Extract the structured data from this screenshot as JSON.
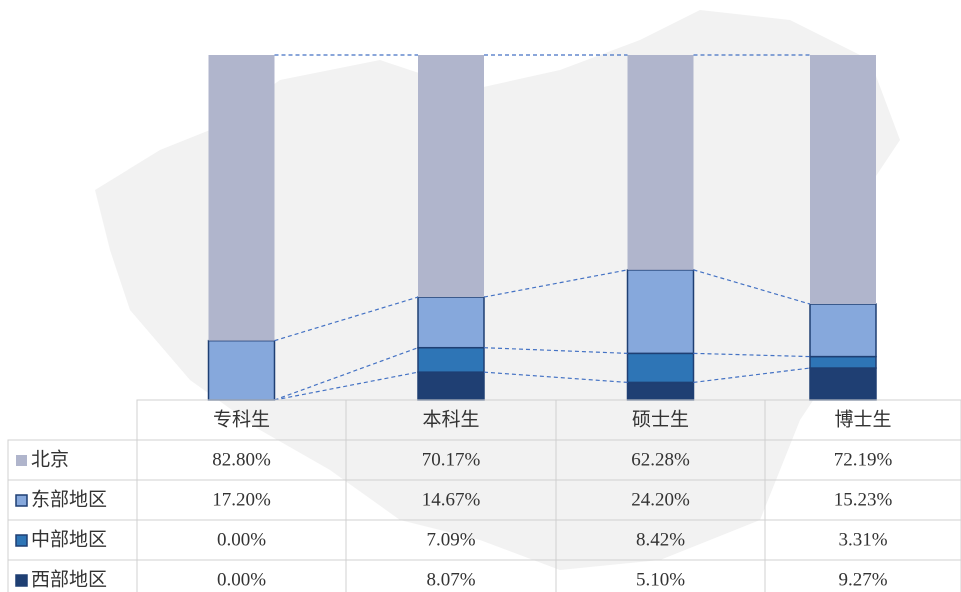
{
  "chart_data": {
    "type": "stacked_bar",
    "categories": [
      "专科生",
      "本科生",
      "硕士生",
      "博士生"
    ],
    "series": [
      {
        "name": "北京",
        "color": "#b0b5cc",
        "values": [
          82.8,
          70.17,
          62.28,
          72.19
        ],
        "value_labels": [
          "82.80%",
          "70.17%",
          "62.28%",
          "72.19%"
        ]
      },
      {
        "name": "东部地区",
        "color": "#86a8dc",
        "values": [
          17.2,
          14.67,
          24.2,
          15.23
        ],
        "value_labels": [
          "17.20%",
          "14.67%",
          "24.20%",
          "15.23%"
        ]
      },
      {
        "name": "中部地区",
        "color": "#2e75b6",
        "values": [
          0,
          7.09,
          8.42,
          3.31
        ],
        "value_labels": [
          "0.00%",
          "7.09%",
          "8.42%",
          "3.31%"
        ]
      },
      {
        "name": "西部地区",
        "color": "#1f3f73",
        "values": [
          0,
          8.07,
          5.1,
          9.27
        ],
        "value_labels": [
          "0.00%",
          "8.07%",
          "5.10%",
          "9.27%"
        ]
      }
    ],
    "ylim": [
      0,
      100
    ]
  }
}
